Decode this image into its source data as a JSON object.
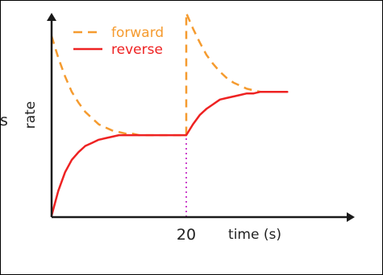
{
  "edge_text": "s",
  "chart_data": {
    "type": "line",
    "title": "",
    "xlabel": "time (s)",
    "ylabel": "rate",
    "xlim": [
      0,
      40
    ],
    "ylim": [
      0,
      1.3
    ],
    "grid": false,
    "legend_position": "top-left",
    "x_ticks": [
      20
    ],
    "x_tick_labels": [
      "20"
    ],
    "event_marker": {
      "x": 20,
      "color": "#cc44cc",
      "style": "dotted"
    },
    "series": [
      {
        "name": "forward",
        "color": "#f59b2f",
        "style": "dashed",
        "x": [
          0,
          1,
          2,
          3,
          4,
          5,
          6,
          7,
          8,
          9,
          10,
          11,
          12,
          13,
          14,
          15,
          16,
          17,
          18,
          19,
          20,
          20,
          21,
          22,
          23,
          24,
          25,
          26,
          27,
          28,
          29,
          30,
          31,
          32,
          33
        ],
        "values": [
          1.17,
          1.03,
          0.91,
          0.81,
          0.74,
          0.68,
          0.64,
          0.6,
          0.58,
          0.56,
          0.55,
          0.54,
          0.54,
          0.53,
          0.53,
          0.53,
          0.53,
          0.53,
          0.53,
          0.53,
          0.53,
          1.32,
          1.22,
          1.13,
          1.05,
          0.99,
          0.94,
          0.9,
          0.87,
          0.85,
          0.83,
          0.82,
          0.81,
          0.81,
          0.81
        ]
      },
      {
        "name": "reverse",
        "color": "#ee2222",
        "style": "solid",
        "x": [
          0,
          1,
          2,
          3,
          4,
          5,
          6,
          7,
          8,
          9,
          10,
          11,
          12,
          13,
          14,
          15,
          16,
          17,
          18,
          19,
          20,
          21,
          22,
          23,
          24,
          25,
          26,
          27,
          28,
          29,
          30,
          31,
          32,
          33,
          34,
          35
        ],
        "values": [
          0.01,
          0.17,
          0.29,
          0.37,
          0.42,
          0.46,
          0.48,
          0.5,
          0.51,
          0.52,
          0.53,
          0.53,
          0.53,
          0.53,
          0.53,
          0.53,
          0.53,
          0.53,
          0.53,
          0.53,
          0.53,
          0.6,
          0.66,
          0.7,
          0.73,
          0.76,
          0.77,
          0.78,
          0.79,
          0.8,
          0.8,
          0.81,
          0.81,
          0.81,
          0.81,
          0.81
        ]
      }
    ]
  }
}
